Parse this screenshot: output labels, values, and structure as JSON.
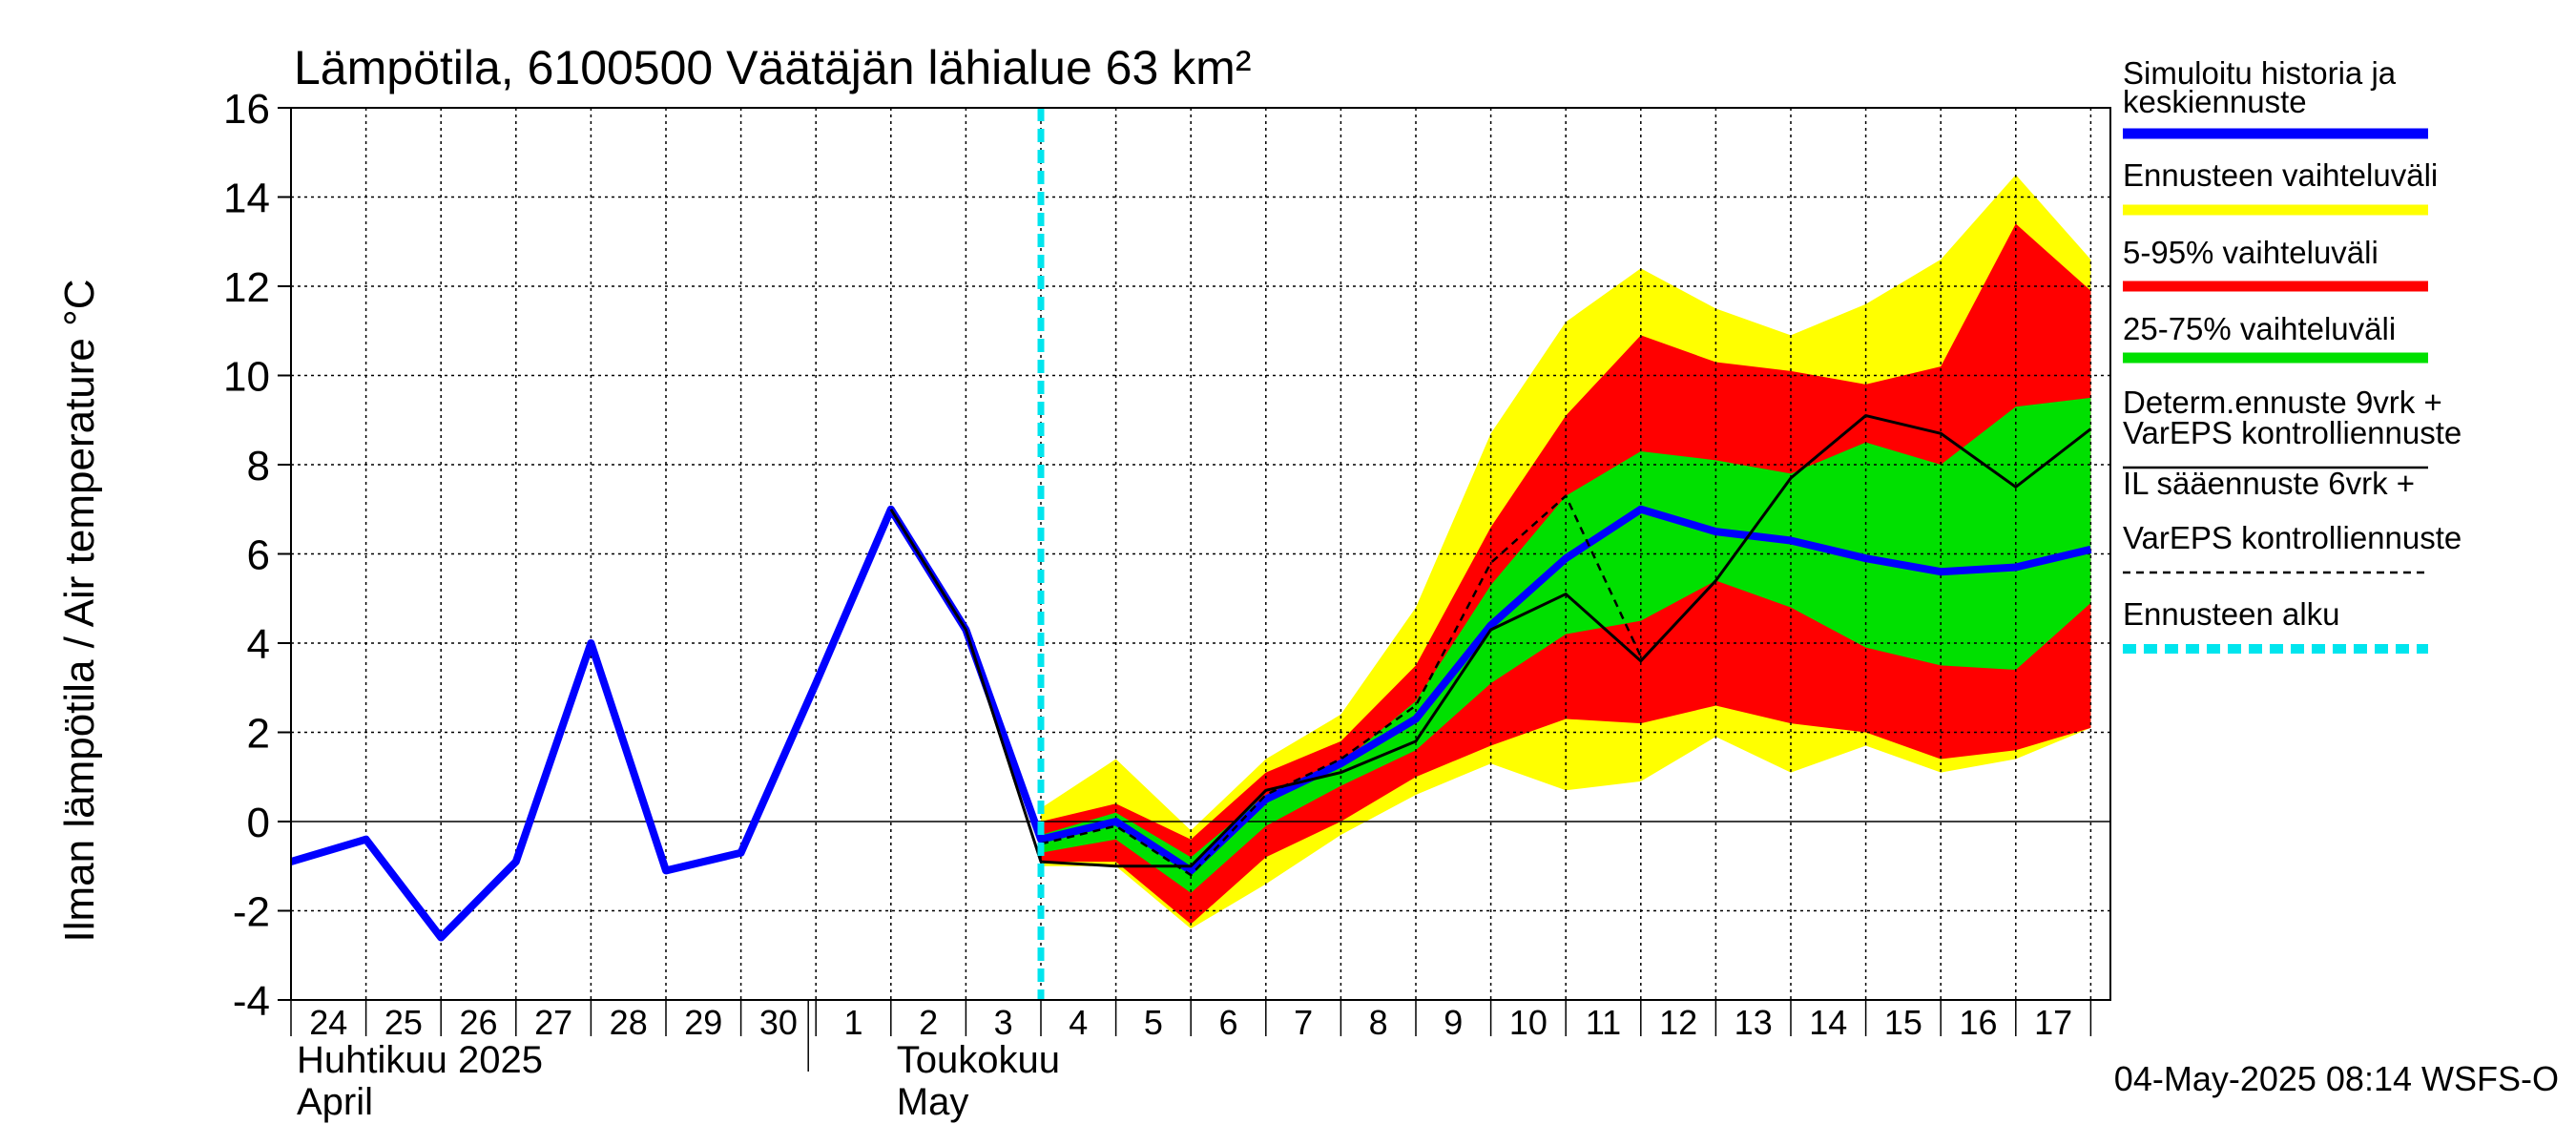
{
  "chart_data": {
    "type": "line",
    "title": "Lämpötila, 6100500 Väätäjän lähialue 63 km²",
    "ylabel": "Ilman lämpötila / Air temperature   °C",
    "ylim": [
      -4,
      16
    ],
    "yticks": [
      -4,
      -2,
      0,
      2,
      4,
      6,
      8,
      10,
      12,
      14,
      16
    ],
    "xlim": [
      0,
      24
    ],
    "x_tick_labels": [
      {
        "x": 0,
        "label": "24"
      },
      {
        "x": 1,
        "label": "25"
      },
      {
        "x": 2,
        "label": "26"
      },
      {
        "x": 3,
        "label": "27"
      },
      {
        "x": 4,
        "label": "28"
      },
      {
        "x": 5,
        "label": "29"
      },
      {
        "x": 6,
        "label": "30"
      },
      {
        "x": 7,
        "label": "1"
      },
      {
        "x": 8,
        "label": "2"
      },
      {
        "x": 9,
        "label": "3"
      },
      {
        "x": 10,
        "label": "4"
      },
      {
        "x": 11,
        "label": "5"
      },
      {
        "x": 12,
        "label": "6"
      },
      {
        "x": 13,
        "label": "7"
      },
      {
        "x": 14,
        "label": "8"
      },
      {
        "x": 15,
        "label": "9"
      },
      {
        "x": 16,
        "label": "10"
      },
      {
        "x": 17,
        "label": "11"
      },
      {
        "x": 18,
        "label": "12"
      },
      {
        "x": 19,
        "label": "13"
      },
      {
        "x": 20,
        "label": "14"
      },
      {
        "x": 21,
        "label": "15"
      },
      {
        "x": 22,
        "label": "16"
      },
      {
        "x": 23,
        "label": "17"
      }
    ],
    "month_labels": [
      {
        "x": 0,
        "line1": "Huhtikuu  2025",
        "line2": "April"
      },
      {
        "x": 8,
        "line1": "Toukokuu",
        "line2": "May"
      }
    ],
    "month_separator_x": 7,
    "forecast_start_x": 10,
    "grid": true,
    "series": [
      {
        "name": "Ennusteen vaihteluväli",
        "kind": "band",
        "color": "#ffff00",
        "x": [
          10,
          11,
          12,
          13,
          14,
          15,
          16,
          17,
          18,
          19,
          20,
          21,
          22,
          23,
          24
        ],
        "low": [
          -1.0,
          -1.0,
          -2.4,
          -1.4,
          -0.3,
          0.6,
          1.3,
          0.7,
          0.9,
          1.9,
          1.1,
          1.7,
          1.1,
          1.4,
          2.1
        ],
        "high": [
          0.3,
          1.4,
          -0.2,
          1.4,
          2.4,
          4.8,
          8.7,
          11.2,
          12.4,
          11.5,
          10.9,
          11.6,
          12.6,
          14.5,
          12.6
        ]
      },
      {
        "name": "5-95% vaihteluväli",
        "kind": "band",
        "color": "#ff0000",
        "x": [
          10,
          11,
          12,
          13,
          14,
          15,
          16,
          17,
          18,
          19,
          20,
          21,
          22,
          23,
          24
        ],
        "low": [
          -0.9,
          -0.9,
          -2.3,
          -0.8,
          0.0,
          1.0,
          1.7,
          2.3,
          2.2,
          2.6,
          2.2,
          2.0,
          1.4,
          1.6,
          2.1
        ],
        "high": [
          0.0,
          0.4,
          -0.4,
          1.1,
          1.8,
          3.5,
          6.6,
          9.1,
          10.9,
          10.3,
          10.1,
          9.8,
          10.2,
          13.4,
          11.9
        ]
      },
      {
        "name": "25-75% vaihteluväli",
        "kind": "band",
        "color": "#00e000",
        "x": [
          10,
          11,
          12,
          13,
          14,
          15,
          16,
          17,
          18,
          19,
          20,
          21,
          22,
          23,
          24
        ],
        "low": [
          -0.7,
          -0.4,
          -1.6,
          -0.1,
          0.8,
          1.6,
          3.1,
          4.2,
          4.5,
          5.4,
          4.8,
          3.9,
          3.5,
          3.4,
          4.9
        ],
        "high": [
          -0.3,
          0.2,
          -0.8,
          0.6,
          1.3,
          2.7,
          5.3,
          7.3,
          8.3,
          8.1,
          7.8,
          8.5,
          8.0,
          9.3,
          9.5
        ]
      },
      {
        "name": "Simuloitu historia ja keskiennuste",
        "kind": "line",
        "color": "#0000ff",
        "x": [
          0,
          1,
          2,
          3,
          4,
          5,
          6,
          7,
          8,
          9,
          10,
          11,
          12,
          13,
          14,
          15,
          16,
          17,
          18,
          19,
          20,
          21,
          22,
          23,
          24
        ],
        "y": [
          -0.9,
          -0.4,
          -2.6,
          -0.9,
          4.0,
          -1.1,
          -0.7,
          3.1,
          7.0,
          4.3,
          -0.4,
          0.0,
          -1.1,
          0.5,
          1.3,
          2.3,
          4.4,
          5.9,
          7.0,
          6.5,
          6.3,
          5.9,
          5.6,
          5.7,
          6.1
        ]
      },
      {
        "name": "Determ.ennuste 9vrk + VarEPS kontrolliennuste",
        "kind": "line",
        "color": "#000000",
        "x": [
          8,
          9,
          10,
          11,
          12,
          13,
          14,
          15,
          16,
          17,
          18,
          19,
          20,
          21,
          22,
          23,
          24
        ],
        "y": [
          7.0,
          4.3,
          -0.9,
          -1.0,
          -1.0,
          0.7,
          1.1,
          1.8,
          4.3,
          5.1,
          3.6,
          5.4,
          7.7,
          9.1,
          8.7,
          7.5,
          8.8
        ]
      },
      {
        "name": "IL sääennuste 6vrk + VarEPS kontrolliennuste",
        "kind": "dashed",
        "color": "#000000",
        "x": [
          10,
          11,
          12,
          13,
          14,
          15,
          16,
          17,
          18
        ],
        "y": [
          -0.5,
          -0.1,
          -1.2,
          0.6,
          1.4,
          2.6,
          5.8,
          7.3,
          3.7
        ]
      }
    ]
  },
  "legend": [
    {
      "line1": "Simuloitu historia ja",
      "line2": "keskiennuste",
      "color": "#0000ff",
      "style": "thick"
    },
    {
      "line1": "Ennusteen vaihteluväli",
      "line2": "",
      "color": "#ffff00",
      "style": "thick"
    },
    {
      "line1": "5-95% vaihteluväli",
      "line2": "",
      "color": "#ff0000",
      "style": "thick"
    },
    {
      "line1": "25-75% vaihteluväli",
      "line2": "",
      "color": "#00e000",
      "style": "thick"
    },
    {
      "line1": "Determ.ennuste 9vrk  +",
      "line2": "VarEPS kontrolliennuste",
      "color": "#000000",
      "style": "thin"
    },
    {
      "line1": "IL sääennuste 6vrk  +",
      "line2": "  VarEPS kontrolliennuste",
      "color": "#000000",
      "style": "dashed"
    },
    {
      "line1": "Ennusteen alku",
      "line2": "",
      "color": "#00e5ee",
      "style": "thickdash"
    }
  ],
  "footer": "04-May-2025 08:14 WSFS-O"
}
